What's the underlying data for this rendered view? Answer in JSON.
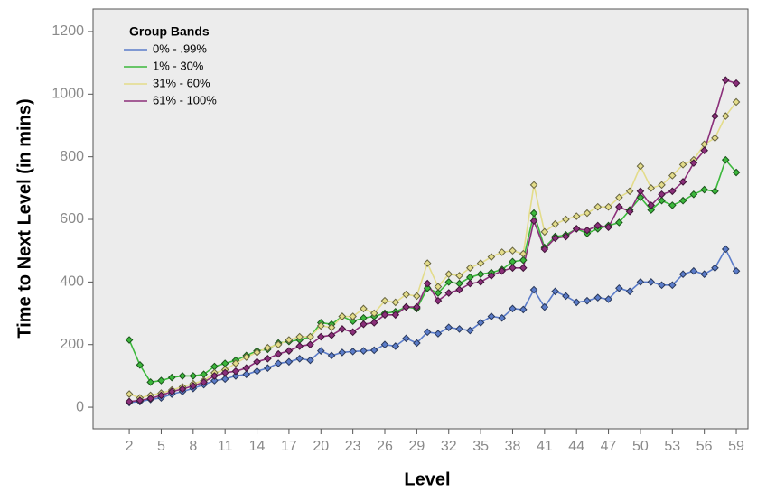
{
  "chart_data": {
    "type": "line",
    "x_label": "Level",
    "y_label": "Time to Next Level (in mins)",
    "legend_title": "Group Bands",
    "legend_position": "upper left",
    "x": [
      2,
      3,
      4,
      5,
      6,
      7,
      8,
      9,
      10,
      11,
      12,
      13,
      14,
      15,
      16,
      17,
      18,
      19,
      20,
      21,
      22,
      23,
      24,
      25,
      26,
      27,
      28,
      29,
      30,
      31,
      32,
      33,
      34,
      35,
      36,
      37,
      38,
      39,
      40,
      41,
      42,
      43,
      44,
      45,
      46,
      47,
      48,
      49,
      50,
      51,
      52,
      53,
      54,
      55,
      56,
      57,
      58,
      59
    ],
    "xlim": [
      -1.4,
      60.1
    ],
    "xticks": [
      2,
      5,
      8,
      11,
      14,
      17,
      20,
      23,
      26,
      29,
      32,
      35,
      38,
      41,
      44,
      47,
      50,
      53,
      56,
      59
    ],
    "ylim": [
      -69,
      1272
    ],
    "yticks": [
      0,
      200,
      400,
      600,
      800,
      1000,
      1200
    ],
    "series": [
      {
        "name": "0% - .99%",
        "color": "#5b7cc9",
        "values": [
          15,
          18,
          25,
          30,
          42,
          50,
          60,
          72,
          85,
          90,
          100,
          105,
          115,
          125,
          140,
          145,
          155,
          150,
          180,
          165,
          175,
          178,
          180,
          182,
          200,
          195,
          220,
          205,
          240,
          235,
          255,
          250,
          245,
          270,
          290,
          285,
          315,
          312,
          375,
          320,
          370,
          355,
          335,
          340,
          350,
          345,
          380,
          370,
          400,
          400,
          390,
          390,
          425,
          435,
          425,
          445,
          505,
          435
        ]
      },
      {
        "name": "1% - 30%",
        "color": "#3cb83c",
        "values": [
          215,
          135,
          80,
          85,
          95,
          100,
          100,
          105,
          130,
          140,
          150,
          165,
          180,
          185,
          205,
          210,
          215,
          225,
          270,
          265,
          290,
          275,
          285,
          290,
          300,
          305,
          320,
          315,
          380,
          365,
          400,
          395,
          415,
          425,
          430,
          440,
          465,
          470,
          620,
          510,
          545,
          550,
          570,
          555,
          570,
          580,
          590,
          630,
          670,
          630,
          660,
          645,
          660,
          680,
          695,
          690,
          790,
          750
        ]
      },
      {
        "name": "31% - 60%",
        "color": "#e3dc8a",
        "values": [
          42,
          30,
          38,
          45,
          55,
          65,
          75,
          85,
          110,
          120,
          140,
          160,
          175,
          190,
          200,
          215,
          225,
          225,
          260,
          255,
          290,
          290,
          315,
          300,
          340,
          335,
          360,
          355,
          460,
          385,
          425,
          420,
          445,
          460,
          480,
          495,
          500,
          490,
          710,
          560,
          585,
          600,
          610,
          620,
          640,
          640,
          670,
          690,
          770,
          700,
          710,
          740,
          775,
          790,
          840,
          860,
          930,
          975
        ]
      },
      {
        "name": "61% - 100%",
        "color": "#8b2f7a",
        "values": [
          18,
          22,
          28,
          38,
          50,
          58,
          68,
          80,
          100,
          110,
          115,
          125,
          145,
          155,
          170,
          180,
          195,
          200,
          225,
          230,
          250,
          240,
          265,
          270,
          295,
          295,
          320,
          320,
          395,
          340,
          365,
          375,
          395,
          400,
          420,
          435,
          445,
          445,
          595,
          505,
          540,
          545,
          570,
          565,
          580,
          575,
          640,
          625,
          690,
          645,
          680,
          690,
          720,
          780,
          820,
          930,
          1045,
          1035
        ]
      }
    ]
  }
}
